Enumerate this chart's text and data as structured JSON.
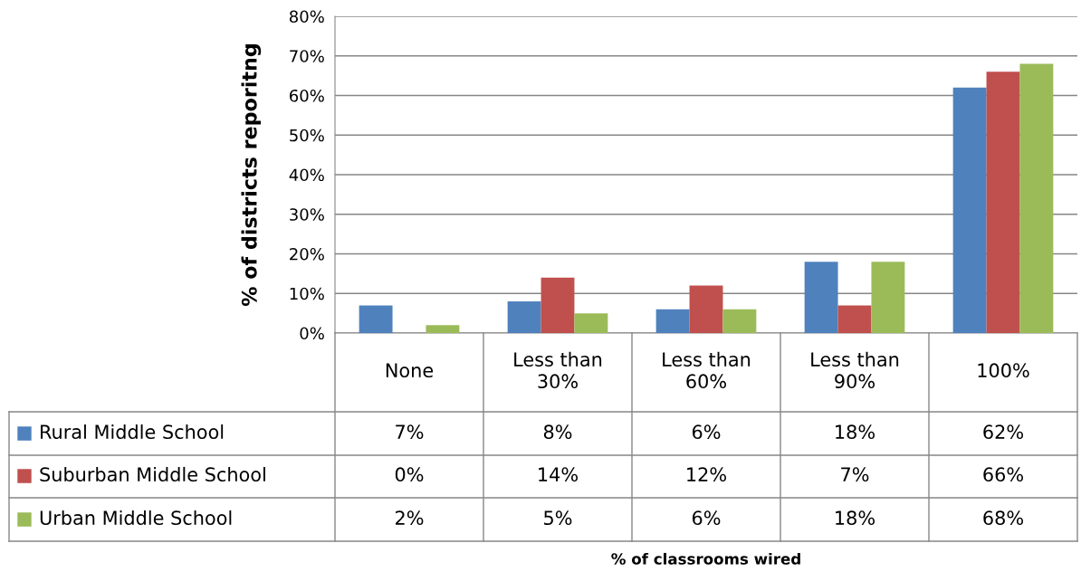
{
  "chart_data": {
    "type": "bar",
    "ylabel": "% of districts reporitng",
    "annotations": [
      "% of classrooms wired"
    ],
    "categories": [
      "None",
      "Less than\n30%",
      "Less than\n60%",
      "Less than\n90%",
      "100%"
    ],
    "series": [
      {
        "name": "Rural Middle School",
        "color": "#4f81bd",
        "values": [
          7,
          8,
          6,
          18,
          62
        ]
      },
      {
        "name": "Suburban Middle School",
        "color": "#c0504d",
        "values": [
          0,
          14,
          12,
          7,
          66
        ]
      },
      {
        "name": "Urban Middle School",
        "color": "#9bbb59",
        "values": [
          2,
          5,
          6,
          18,
          68
        ]
      }
    ],
    "ylim": [
      0,
      80
    ],
    "yticks": [
      {
        "value": 0,
        "label": "0%"
      },
      {
        "value": 10,
        "label": "10%"
      },
      {
        "value": 20,
        "label": "20%"
      },
      {
        "value": 30,
        "label": "30%"
      },
      {
        "value": 40,
        "label": "40%"
      },
      {
        "value": 50,
        "label": "50%"
      },
      {
        "value": 60,
        "label": "60%"
      },
      {
        "value": 70,
        "label": "70%"
      },
      {
        "value": 80,
        "label": "80%"
      }
    ],
    "value_labels": [
      [
        "7%",
        "8%",
        "6%",
        "18%",
        "62%"
      ],
      [
        "0%",
        "14%",
        "12%",
        "7%",
        "66%"
      ],
      [
        "2%",
        "5%",
        "6%",
        "18%",
        "68%"
      ]
    ],
    "grid": "y",
    "legend": "bottom left"
  }
}
